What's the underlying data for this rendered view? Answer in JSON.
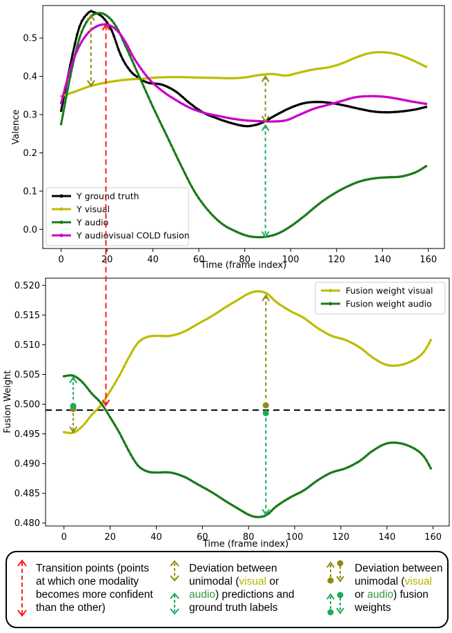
{
  "colors": {
    "ground_truth": "#000000",
    "visual": "#bdbd00",
    "audio": "#1a7a1a",
    "fusion": "#c800c8",
    "arrow_red": "#ff1a1a",
    "arrow_olive": "#8f8a10",
    "arrow_green": "#1aaa5a"
  },
  "chart_data": [
    {
      "type": "line",
      "title": "",
      "xlabel": "Time (frame index)",
      "ylabel": "Valence",
      "xlim": [
        -8,
        167
      ],
      "ylim": [
        -0.05,
        0.585
      ],
      "xticks": [
        0,
        20,
        40,
        60,
        80,
        100,
        120,
        140,
        160
      ],
      "yticks": [
        0.0,
        0.1,
        0.2,
        0.3,
        0.4,
        0.5
      ],
      "ytick_labels": [
        "0.0",
        "0.1",
        "0.2",
        "0.3",
        "0.4",
        "0.5"
      ],
      "legend_position": "bottom-left",
      "series": [
        {
          "name": "Y ground truth",
          "color_key": "ground_truth",
          "points": [
            [
              0,
              0.31
            ],
            [
              4,
              0.43
            ],
            [
              8,
              0.53
            ],
            [
              12,
              0.567
            ],
            [
              14,
              0.568
            ],
            [
              18,
              0.555
            ],
            [
              22,
              0.52
            ],
            [
              26,
              0.455
            ],
            [
              30,
              0.415
            ],
            [
              34,
              0.395
            ],
            [
              38,
              0.383
            ],
            [
              44,
              0.378
            ],
            [
              50,
              0.36
            ],
            [
              56,
              0.33
            ],
            [
              62,
              0.305
            ],
            [
              68,
              0.29
            ],
            [
              74,
              0.278
            ],
            [
              80,
              0.27
            ],
            [
              84,
              0.272
            ],
            [
              88,
              0.28
            ],
            [
              94,
              0.3
            ],
            [
              100,
              0.318
            ],
            [
              106,
              0.33
            ],
            [
              112,
              0.333
            ],
            [
              118,
              0.33
            ],
            [
              124,
              0.323
            ],
            [
              130,
              0.315
            ],
            [
              136,
              0.308
            ],
            [
              142,
              0.306
            ],
            [
              148,
              0.308
            ],
            [
              154,
              0.313
            ],
            [
              159,
              0.32
            ]
          ]
        },
        {
          "name": "Y visual",
          "color_key": "visual",
          "points": [
            [
              0,
              0.348
            ],
            [
              6,
              0.36
            ],
            [
              12,
              0.373
            ],
            [
              18,
              0.382
            ],
            [
              24,
              0.388
            ],
            [
              30,
              0.392
            ],
            [
              36,
              0.394
            ],
            [
              42,
              0.397
            ],
            [
              50,
              0.398
            ],
            [
              58,
              0.397
            ],
            [
              66,
              0.396
            ],
            [
              74,
              0.395
            ],
            [
              80,
              0.397
            ],
            [
              86,
              0.403
            ],
            [
              92,
              0.406
            ],
            [
              98,
              0.402
            ],
            [
              104,
              0.41
            ],
            [
              110,
              0.418
            ],
            [
              116,
              0.423
            ],
            [
              122,
              0.433
            ],
            [
              128,
              0.448
            ],
            [
              134,
              0.46
            ],
            [
              140,
              0.463
            ],
            [
              146,
              0.458
            ],
            [
              152,
              0.445
            ],
            [
              159,
              0.425
            ]
          ]
        },
        {
          "name": "Y audio",
          "color_key": "audio",
          "points": [
            [
              0,
              0.275
            ],
            [
              4,
              0.4
            ],
            [
              8,
              0.5
            ],
            [
              12,
              0.55
            ],
            [
              16,
              0.565
            ],
            [
              20,
              0.558
            ],
            [
              24,
              0.53
            ],
            [
              28,
              0.48
            ],
            [
              34,
              0.4
            ],
            [
              40,
              0.32
            ],
            [
              46,
              0.245
            ],
            [
              52,
              0.17
            ],
            [
              58,
              0.1
            ],
            [
              64,
              0.05
            ],
            [
              70,
              0.015
            ],
            [
              76,
              -0.005
            ],
            [
              82,
              -0.018
            ],
            [
              88,
              -0.02
            ],
            [
              94,
              -0.012
            ],
            [
              100,
              0.008
            ],
            [
              106,
              0.035
            ],
            [
              112,
              0.065
            ],
            [
              118,
              0.09
            ],
            [
              124,
              0.11
            ],
            [
              130,
              0.125
            ],
            [
              136,
              0.133
            ],
            [
              142,
              0.136
            ],
            [
              148,
              0.138
            ],
            [
              154,
              0.148
            ],
            [
              159,
              0.165
            ]
          ]
        },
        {
          "name": "Y audiovisual COLD fusion",
          "color_key": "fusion",
          "points": [
            [
              0,
              0.33
            ],
            [
              4,
              0.42
            ],
            [
              8,
              0.48
            ],
            [
              12,
              0.515
            ],
            [
              16,
              0.532
            ],
            [
              20,
              0.535
            ],
            [
              24,
              0.522
            ],
            [
              28,
              0.49
            ],
            [
              32,
              0.445
            ],
            [
              38,
              0.395
            ],
            [
              44,
              0.362
            ],
            [
              50,
              0.338
            ],
            [
              56,
              0.318
            ],
            [
              62,
              0.305
            ],
            [
              68,
              0.297
            ],
            [
              74,
              0.29
            ],
            [
              80,
              0.285
            ],
            [
              86,
              0.283
            ],
            [
              92,
              0.282
            ],
            [
              98,
              0.285
            ],
            [
              104,
              0.3
            ],
            [
              110,
              0.315
            ],
            [
              116,
              0.325
            ],
            [
              122,
              0.335
            ],
            [
              128,
              0.345
            ],
            [
              134,
              0.348
            ],
            [
              140,
              0.347
            ],
            [
              146,
              0.342
            ],
            [
              152,
              0.335
            ],
            [
              159,
              0.328
            ]
          ]
        }
      ]
    },
    {
      "type": "line",
      "title": "",
      "xlabel": "Time (frame index)",
      "ylabel": "Fusion Weight",
      "xlim": [
        -8,
        167
      ],
      "ylim": [
        0.4795,
        0.5212
      ],
      "xticks": [
        0,
        20,
        40,
        60,
        80,
        100,
        120,
        140,
        160
      ],
      "yticks": [
        0.48,
        0.485,
        0.49,
        0.495,
        0.5,
        0.505,
        0.51,
        0.515,
        0.52
      ],
      "ytick_labels": [
        "0.480",
        "0.485",
        "0.490",
        "0.495",
        "0.500",
        "0.505",
        "0.510",
        "0.515",
        "0.520"
      ],
      "hline": 0.499,
      "legend_position": "top-right",
      "series": [
        {
          "name": "Fusion weight visual",
          "color_key": "visual",
          "points": [
            [
              0,
              0.4953
            ],
            [
              4,
              0.4952
            ],
            [
              8,
              0.4963
            ],
            [
              12,
              0.4982
            ],
            [
              16,
              0.4998
            ],
            [
              20,
              0.5022
            ],
            [
              24,
              0.5048
            ],
            [
              28,
              0.5078
            ],
            [
              32,
              0.5103
            ],
            [
              36,
              0.5113
            ],
            [
              40,
              0.5115
            ],
            [
              46,
              0.5115
            ],
            [
              52,
              0.5122
            ],
            [
              58,
              0.5135
            ],
            [
              64,
              0.5148
            ],
            [
              70,
              0.5163
            ],
            [
              76,
              0.5177
            ],
            [
              80,
              0.5186
            ],
            [
              84,
              0.519
            ],
            [
              88,
              0.5186
            ],
            [
              92,
              0.5172
            ],
            [
              98,
              0.5157
            ],
            [
              104,
              0.5145
            ],
            [
              110,
              0.5128
            ],
            [
              116,
              0.5115
            ],
            [
              122,
              0.5108
            ],
            [
              128,
              0.5096
            ],
            [
              134,
              0.5078
            ],
            [
              140,
              0.5066
            ],
            [
              146,
              0.5066
            ],
            [
              152,
              0.5075
            ],
            [
              156,
              0.5088
            ],
            [
              159,
              0.5108
            ]
          ]
        },
        {
          "name": "Fusion weight audio",
          "color_key": "audio",
          "points": [
            [
              0,
              0.5047
            ],
            [
              4,
              0.5048
            ],
            [
              8,
              0.5037
            ],
            [
              12,
              0.5018
            ],
            [
              16,
              0.5002
            ],
            [
              20,
              0.4978
            ],
            [
              24,
              0.4952
            ],
            [
              28,
              0.4922
            ],
            [
              32,
              0.4897
            ],
            [
              36,
              0.4887
            ],
            [
              40,
              0.4885
            ],
            [
              46,
              0.4885
            ],
            [
              52,
              0.4878
            ],
            [
              58,
              0.4865
            ],
            [
              64,
              0.4852
            ],
            [
              70,
              0.4837
            ],
            [
              76,
              0.4823
            ],
            [
              80,
              0.4814
            ],
            [
              84,
              0.481
            ],
            [
              88,
              0.4814
            ],
            [
              92,
              0.4828
            ],
            [
              98,
              0.4843
            ],
            [
              104,
              0.4855
            ],
            [
              110,
              0.4872
            ],
            [
              116,
              0.4885
            ],
            [
              122,
              0.4892
            ],
            [
              128,
              0.4904
            ],
            [
              134,
              0.4922
            ],
            [
              140,
              0.4934
            ],
            [
              146,
              0.4934
            ],
            [
              152,
              0.4925
            ],
            [
              156,
              0.4912
            ],
            [
              159,
              0.4892
            ]
          ]
        }
      ]
    }
  ],
  "legend_bottom": {
    "item1": "Transition points (points at which one modality becomes more confident than the other)",
    "item2": {
      "l1": "Deviation between",
      "l2a": "unimodal (",
      "l2b": "visual",
      "l2c": " or",
      "l3a": "audio",
      "l3b": ") predictions and",
      "l4": "ground truth labels"
    },
    "item3": {
      "l1": "Deviation between",
      "l2a": "unimodal (",
      "l2b": "visual",
      "l3a": "or ",
      "l3b": "audio",
      "l3c": ") fusion",
      "l4": "weights"
    }
  }
}
